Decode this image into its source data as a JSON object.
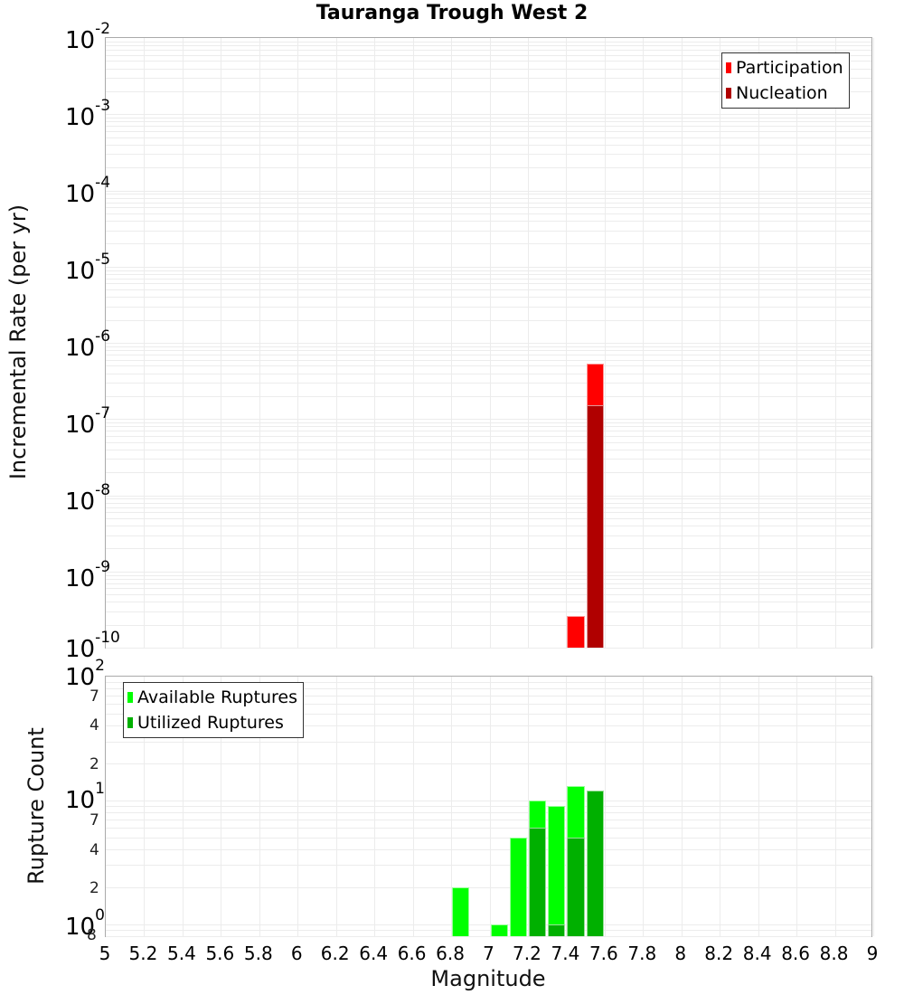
{
  "chart_data": [
    {
      "type": "bar",
      "title": "Tauranga Trough West 2",
      "xlabel": "Magnitude",
      "ylabel": "Incremental Rate (per yr)",
      "yscale": "log",
      "ylim": [
        1e-10,
        0.01
      ],
      "xlim": [
        5,
        9
      ],
      "grid": true,
      "legend_position": "top-right",
      "y_tick_labels": [
        "10^-2",
        "10^-3",
        "10^-4",
        "10^-5",
        "10^-6",
        "10^-7",
        "10^-8",
        "10^-9",
        "10^-10"
      ],
      "series": [
        {
          "name": "Participation",
          "color": "#ff0000",
          "x": [
            7.45,
            7.55
          ],
          "values": [
            2.6e-10,
            5.3e-07
          ]
        },
        {
          "name": "Nucleation",
          "color": "#b00000",
          "x": [
            7.55
          ],
          "values": [
            1.5e-07
          ]
        }
      ]
    },
    {
      "type": "bar",
      "title": "",
      "xlabel": "Magnitude",
      "ylabel": "Rupture Count",
      "yscale": "log",
      "ylim": [
        0.8,
        100
      ],
      "xlim": [
        5,
        9
      ],
      "grid": true,
      "legend_position": "top-left",
      "y_tick_labels": [
        "10^2",
        "7",
        "4",
        "2",
        "10^1",
        "7",
        "4",
        "2",
        "10^0",
        "8"
      ],
      "series": [
        {
          "name": "Available Ruptures",
          "color": "#00ff00",
          "x": [
            6.85,
            7.05,
            7.15,
            7.25,
            7.35,
            7.45,
            7.55
          ],
          "values": [
            2,
            1,
            5,
            10,
            9,
            13,
            12
          ]
        },
        {
          "name": "Utilized Ruptures",
          "color": "#00b000",
          "x": [
            7.25,
            7.35,
            7.45,
            7.55
          ],
          "values": [
            6,
            1,
            5,
            12
          ]
        }
      ]
    }
  ],
  "title": "Tauranga Trough West 2",
  "top": {
    "ylabel": "Incremental Rate (per yr)",
    "yticks": [
      {
        "base": "10",
        "exp": "-2"
      },
      {
        "base": "10",
        "exp": "-3"
      },
      {
        "base": "10",
        "exp": "-4"
      },
      {
        "base": "10",
        "exp": "-5"
      },
      {
        "base": "10",
        "exp": "-6"
      },
      {
        "base": "10",
        "exp": "-7"
      },
      {
        "base": "10",
        "exp": "-8"
      },
      {
        "base": "10",
        "exp": "-9"
      },
      {
        "base": "10",
        "exp": "-10"
      }
    ],
    "legend": [
      "Participation",
      "Nucleation"
    ]
  },
  "bottom": {
    "ylabel": "Rupture Count",
    "major": [
      {
        "base": "10",
        "exp": "2"
      },
      {
        "base": "10",
        "exp": "1"
      },
      {
        "base": "10",
        "exp": "0"
      }
    ],
    "minor": [
      "7",
      "4",
      "2",
      "7",
      "4",
      "2",
      "8"
    ],
    "legend": [
      "Available Ruptures",
      "Utilized Ruptures"
    ]
  },
  "xaxis": {
    "label": "Magnitude",
    "ticks": [
      "5",
      "5.2",
      "5.4",
      "5.6",
      "5.8",
      "6",
      "6.2",
      "6.4",
      "6.6",
      "6.8",
      "7",
      "7.2",
      "7.4",
      "7.6",
      "7.8",
      "8",
      "8.2",
      "8.4",
      "8.6",
      "8.8",
      "9"
    ]
  }
}
